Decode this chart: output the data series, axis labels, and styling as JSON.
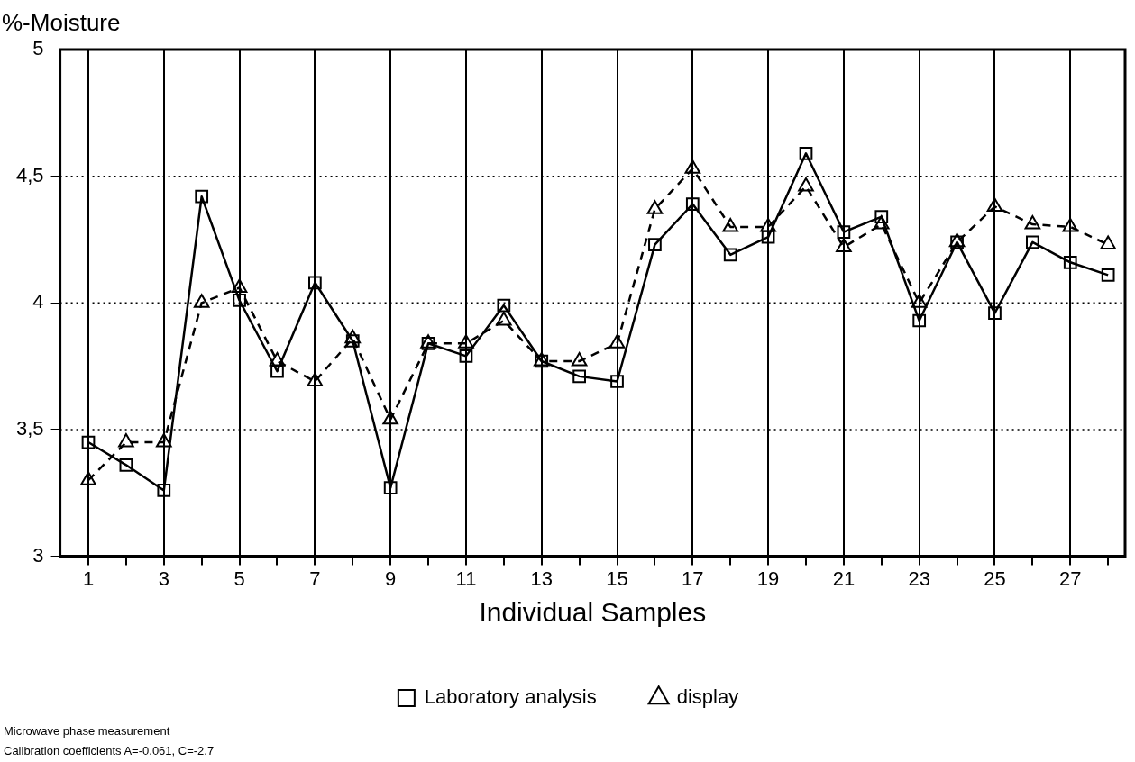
{
  "chart_data": {
    "type": "line",
    "ylabel": "%-Moisture",
    "xlabel": "Individual Samples",
    "x": [
      1,
      2,
      3,
      4,
      5,
      6,
      7,
      8,
      9,
      10,
      11,
      12,
      13,
      14,
      15,
      16,
      17,
      18,
      19,
      20,
      21,
      22,
      23,
      24,
      25,
      26,
      27,
      28
    ],
    "xlim": [
      0.25,
      28.45
    ],
    "xticks": [
      1,
      {
        "value": 2,
        "label": null
      },
      3,
      {
        "value": 4,
        "label": null
      },
      5,
      {
        "value": 6,
        "label": null
      },
      7,
      {
        "value": 8,
        "label": null
      },
      9,
      {
        "value": 10,
        "label": null
      },
      11,
      {
        "value": 12,
        "label": null
      },
      13,
      {
        "value": 14,
        "label": null
      },
      15,
      {
        "value": 16,
        "label": null
      },
      17,
      {
        "value": 18,
        "label": null
      },
      19,
      {
        "value": 20,
        "label": null
      },
      21,
      {
        "value": 22,
        "label": null
      },
      23,
      {
        "value": 24,
        "label": null
      },
      25,
      {
        "value": 26,
        "label": null
      },
      27,
      {
        "value": 28,
        "label": null
      }
    ],
    "ylim": [
      3,
      5
    ],
    "yticks": [
      3,
      {
        "value": 3.5,
        "label": "3,5"
      },
      4,
      {
        "value": 4.5,
        "label": "4,5"
      },
      5
    ],
    "grid": true,
    "legend": "bottom",
    "series": [
      {
        "name": "Laboratory analysis",
        "color": "#000000",
        "marker": "square",
        "line_style": "solid",
        "values": [
          3.45,
          3.36,
          3.26,
          4.42,
          4.01,
          3.73,
          4.08,
          3.85,
          3.27,
          3.84,
          3.79,
          3.99,
          3.77,
          3.71,
          3.69,
          4.23,
          4.39,
          4.19,
          4.26,
          4.59,
          4.28,
          4.34,
          3.93,
          4.24,
          3.96,
          4.24,
          4.16,
          4.11
        ]
      },
      {
        "name": "display",
        "color": "#000000",
        "marker": "triangle",
        "line_style": "dashed",
        "values": [
          3.3,
          3.45,
          3.45,
          4.0,
          4.06,
          3.77,
          3.69,
          3.86,
          3.54,
          3.84,
          3.84,
          3.93,
          3.77,
          3.77,
          3.84,
          4.37,
          4.53,
          4.3,
          4.3,
          4.46,
          4.22,
          4.31,
          4.0,
          4.24,
          4.38,
          4.31,
          4.3,
          4.23
        ]
      }
    ],
    "annotations": [
      "Microwave phase measurement",
      "Calibration coefficients A=-0.061, C=-2.7"
    ]
  }
}
